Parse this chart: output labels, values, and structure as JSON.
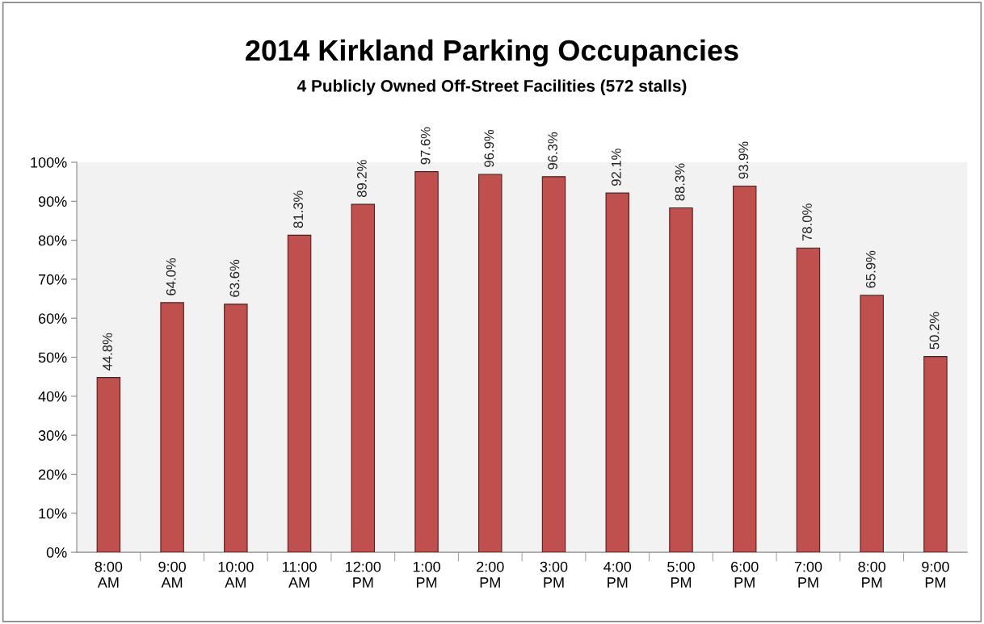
{
  "chart_data": {
    "type": "bar",
    "title": "2014 Kirkland Parking Occupancies",
    "subtitle": "4 Publicly Owned Off-Street Facilities (572 stalls)",
    "categories": [
      "8:00\nAM",
      "9:00\nAM",
      "10:00\nAM",
      "11:00\nAM",
      "12:00\nPM",
      "1:00\nPM",
      "2:00\nPM",
      "3:00\nPM",
      "4:00\nPM",
      "5:00\nPM",
      "6:00\nPM",
      "7:00\nPM",
      "8:00\nPM",
      "9:00\nPM"
    ],
    "values": [
      44.8,
      64.0,
      63.6,
      81.3,
      89.2,
      97.6,
      96.9,
      96.3,
      92.1,
      88.3,
      93.9,
      78.0,
      65.9,
      50.2
    ],
    "value_labels": [
      "44.8%",
      "64.0%",
      "63.6%",
      "81.3%",
      "89.2%",
      "97.6%",
      "96.9%",
      "96.3%",
      "92.1%",
      "88.3%",
      "93.9%",
      "78.0%",
      "65.9%",
      "50.2%"
    ],
    "color": "#c0504d",
    "ylim": [
      0,
      100
    ],
    "yticks": [
      {
        "value": 0,
        "label": "0%"
      },
      {
        "value": 10,
        "label": "10%"
      },
      {
        "value": 20,
        "label": "20%"
      },
      {
        "value": 30,
        "label": "30%"
      },
      {
        "value": 40,
        "label": "40%"
      },
      {
        "value": 50,
        "label": "50%"
      },
      {
        "value": 60,
        "label": "60%"
      },
      {
        "value": 70,
        "label": "70%"
      },
      {
        "value": 80,
        "label": "80%"
      },
      {
        "value": 90,
        "label": "90%"
      },
      {
        "value": 100,
        "label": "100%"
      }
    ],
    "grid": false
  }
}
